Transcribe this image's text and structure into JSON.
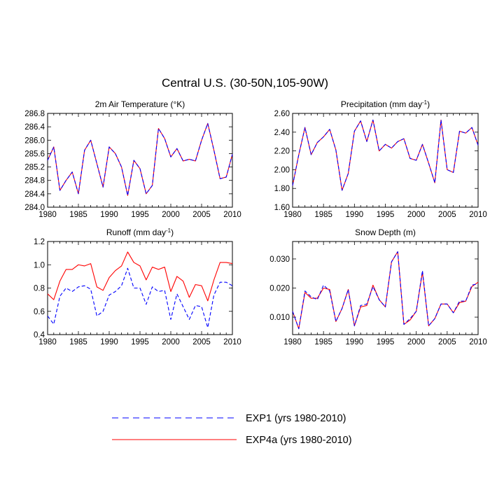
{
  "figure": {
    "title": "Central U.S. (30-50N,105-90W)"
  },
  "legend": {
    "items": [
      {
        "label": "EXP1 (yrs 1980-2010)",
        "color": "#0000ff",
        "dash": "dashed"
      },
      {
        "label": "EXP4a (yrs 1980-2010)",
        "color": "#ff0000",
        "dash": "solid"
      }
    ]
  },
  "chart_data": [
    {
      "type": "line",
      "title": "2m Air Temperature (°K)",
      "title_sup": "",
      "xlabel": "",
      "ylabel": "",
      "xlim": [
        1980,
        2010
      ],
      "ylim": [
        284.0,
        286.8
      ],
      "xticks": [
        1980,
        1985,
        1990,
        1995,
        2000,
        2005,
        2010
      ],
      "yticks": [
        284.0,
        284.4,
        284.8,
        285.2,
        285.6,
        286.0,
        286.4,
        286.8
      ],
      "ytick_labels": [
        "284.0",
        "284.4",
        "284.8",
        "285.2",
        "285.6",
        "286.0",
        "286.4",
        "286.8"
      ],
      "x": [
        1980,
        1981,
        1982,
        1983,
        1984,
        1985,
        1986,
        1987,
        1988,
        1989,
        1990,
        1991,
        1992,
        1993,
        1994,
        1995,
        1996,
        1997,
        1998,
        1999,
        2000,
        2001,
        2002,
        2003,
        2004,
        2005,
        2006,
        2007,
        2008,
        2009,
        2010
      ],
      "series": [
        {
          "name": "EXP1 (yrs 1980-2010)",
          "color": "#0000ff",
          "dash": "dashed",
          "values": [
            285.4,
            285.8,
            284.5,
            284.8,
            285.05,
            284.4,
            285.7,
            286.0,
            285.3,
            284.6,
            285.8,
            285.6,
            285.2,
            284.35,
            285.4,
            285.15,
            284.4,
            284.65,
            286.35,
            286.05,
            285.5,
            285.75,
            285.38,
            285.43,
            285.38,
            286.0,
            286.5,
            285.7,
            284.85,
            284.9,
            285.58
          ]
        },
        {
          "name": "EXP4a (yrs 1980-2010)",
          "color": "#ff0000",
          "dash": "solid",
          "values": [
            285.4,
            285.8,
            284.5,
            284.8,
            285.05,
            284.4,
            285.7,
            286.0,
            285.3,
            284.6,
            285.8,
            285.6,
            285.2,
            284.35,
            285.4,
            285.15,
            284.4,
            284.65,
            286.35,
            286.05,
            285.5,
            285.75,
            285.38,
            285.43,
            285.38,
            286.0,
            286.5,
            285.7,
            284.85,
            284.9,
            285.58
          ]
        }
      ]
    },
    {
      "type": "line",
      "title": "Precipitation (mm day",
      "title_sup": "-1",
      "title_tail": ")",
      "xlabel": "",
      "ylabel": "",
      "xlim": [
        1980,
        2010
      ],
      "ylim": [
        1.6,
        2.6
      ],
      "xticks": [
        1980,
        1985,
        1990,
        1995,
        2000,
        2005,
        2010
      ],
      "yticks": [
        1.6,
        1.8,
        2.0,
        2.2,
        2.4,
        2.6
      ],
      "ytick_labels": [
        "1.60",
        "1.80",
        "2.00",
        "2.20",
        "2.40",
        "2.60"
      ],
      "x": [
        1980,
        1981,
        1982,
        1983,
        1984,
        1985,
        1986,
        1987,
        1988,
        1989,
        1990,
        1991,
        1992,
        1993,
        1994,
        1995,
        1996,
        1997,
        1998,
        1999,
        2000,
        2001,
        2002,
        2003,
        2004,
        2005,
        2006,
        2007,
        2008,
        2009,
        2010
      ],
      "series": [
        {
          "name": "EXP1 (yrs 1980-2010)",
          "color": "#0000ff",
          "dash": "dashed",
          "values": [
            1.83,
            2.16,
            2.45,
            2.16,
            2.29,
            2.35,
            2.43,
            2.21,
            1.78,
            1.96,
            2.41,
            2.52,
            2.3,
            2.53,
            2.2,
            2.27,
            2.23,
            2.3,
            2.33,
            2.12,
            2.1,
            2.27,
            2.07,
            1.86,
            2.53,
            2.0,
            1.97,
            2.41,
            2.39,
            2.45,
            2.26
          ]
        },
        {
          "name": "EXP4a (yrs 1980-2010)",
          "color": "#ff0000",
          "dash": "solid",
          "values": [
            1.83,
            2.16,
            2.45,
            2.16,
            2.29,
            2.35,
            2.43,
            2.21,
            1.78,
            1.96,
            2.41,
            2.52,
            2.3,
            2.53,
            2.2,
            2.27,
            2.23,
            2.3,
            2.33,
            2.12,
            2.1,
            2.27,
            2.07,
            1.86,
            2.53,
            2.0,
            1.97,
            2.41,
            2.39,
            2.45,
            2.26
          ]
        }
      ]
    },
    {
      "type": "line",
      "title": "Runoff (mm day",
      "title_sup": "-1",
      "title_tail": ")",
      "xlabel": "",
      "ylabel": "",
      "xlim": [
        1980,
        2010
      ],
      "ylim": [
        0.4,
        1.2
      ],
      "xticks": [
        1980,
        1985,
        1990,
        1995,
        2000,
        2005,
        2010
      ],
      "yticks": [
        0.4,
        0.6,
        0.8,
        1.0,
        1.2
      ],
      "ytick_labels": [
        "0.4",
        "0.6",
        "0.8",
        "1.0",
        "1.2"
      ],
      "x": [
        1980,
        1981,
        1982,
        1983,
        1984,
        1985,
        1986,
        1987,
        1988,
        1989,
        1990,
        1991,
        1992,
        1993,
        1994,
        1995,
        1996,
        1997,
        1998,
        1999,
        2000,
        2001,
        2002,
        2003,
        2004,
        2005,
        2006,
        2007,
        2008,
        2009,
        2010
      ],
      "series": [
        {
          "name": "EXP1 (yrs 1980-2010)",
          "color": "#0000ff",
          "dash": "dashed",
          "values": [
            0.56,
            0.49,
            0.73,
            0.8,
            0.77,
            0.81,
            0.82,
            0.79,
            0.56,
            0.6,
            0.74,
            0.77,
            0.82,
            0.97,
            0.8,
            0.8,
            0.66,
            0.81,
            0.77,
            0.78,
            0.53,
            0.75,
            0.64,
            0.53,
            0.65,
            0.64,
            0.46,
            0.74,
            0.85,
            0.85,
            0.82
          ]
        },
        {
          "name": "EXP4a (yrs 1980-2010)",
          "color": "#ff0000",
          "dash": "solid",
          "values": [
            0.75,
            0.7,
            0.86,
            0.96,
            0.96,
            1.0,
            0.99,
            1.01,
            0.81,
            0.78,
            0.89,
            0.95,
            0.99,
            1.11,
            1.02,
            0.99,
            0.87,
            0.98,
            0.96,
            0.98,
            0.77,
            0.9,
            0.86,
            0.72,
            0.83,
            0.82,
            0.69,
            0.87,
            1.02,
            1.02,
            1.01
          ]
        }
      ]
    },
    {
      "type": "line",
      "title": "Snow Depth (m)",
      "title_sup": "",
      "xlabel": "",
      "ylabel": "",
      "xlim": [
        1980,
        2010
      ],
      "ylim": [
        0.004,
        0.036
      ],
      "xticks": [
        1980,
        1985,
        1990,
        1995,
        2000,
        2005,
        2010
      ],
      "yticks": [
        0.01,
        0.02,
        0.03
      ],
      "ytick_labels": [
        "0.010",
        "0.020",
        "0.030"
      ],
      "x": [
        1980,
        1981,
        1982,
        1983,
        1984,
        1985,
        1986,
        1987,
        1988,
        1989,
        1990,
        1991,
        1992,
        1993,
        1994,
        1995,
        1996,
        1997,
        1998,
        1999,
        2000,
        2001,
        2002,
        2003,
        2004,
        2005,
        2006,
        2007,
        2008,
        2009,
        2010
      ],
      "series": [
        {
          "name": "EXP1 (yrs 1980-2010)",
          "color": "#0000ff",
          "dash": "dashed",
          "values": [
            0.012,
            0.006,
            0.019,
            0.017,
            0.016,
            0.021,
            0.019,
            0.0085,
            0.013,
            0.0195,
            0.007,
            0.014,
            0.0145,
            0.0205,
            0.016,
            0.0135,
            0.029,
            0.0325,
            0.0075,
            0.0095,
            0.012,
            0.026,
            0.007,
            0.0095,
            0.0145,
            0.0145,
            0.0115,
            0.0155,
            0.0155,
            0.021,
            0.0215
          ]
        },
        {
          "name": "EXP4a (yrs 1980-2010)",
          "color": "#ff0000",
          "dash": "solid",
          "values": [
            0.012,
            0.006,
            0.0185,
            0.0165,
            0.0165,
            0.02,
            0.0195,
            0.0085,
            0.013,
            0.0195,
            0.007,
            0.0135,
            0.014,
            0.021,
            0.016,
            0.0135,
            0.029,
            0.0325,
            0.0075,
            0.009,
            0.012,
            0.0255,
            0.007,
            0.0095,
            0.0145,
            0.0145,
            0.0115,
            0.015,
            0.0155,
            0.0205,
            0.022
          ]
        }
      ]
    }
  ]
}
